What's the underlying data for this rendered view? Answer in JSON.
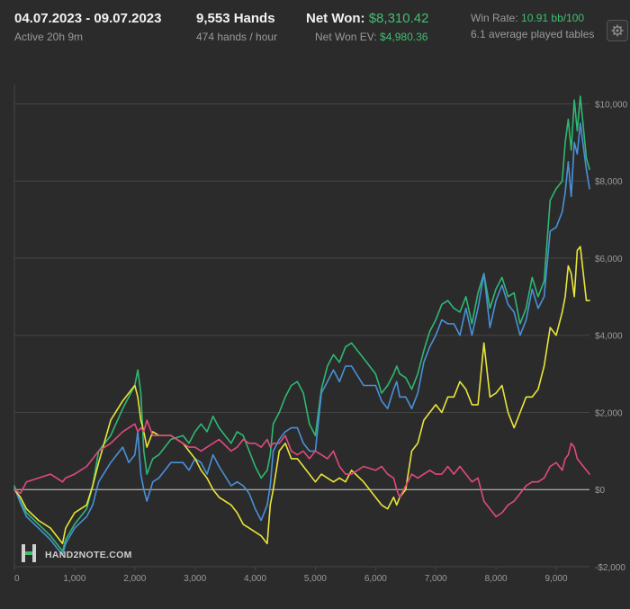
{
  "header": {
    "date_range": "04.07.2023 - 09.07.2023",
    "active": "Active 20h 9m",
    "hands": "9,553 Hands",
    "hands_per_hour": "474 hands / hour",
    "net_won_label": "Net Won:",
    "net_won_value": "$8,310.42",
    "net_won_ev_label": "Net Won  EV:",
    "net_won_ev_value": "$4,980.36",
    "win_rate_label": "Win Rate:",
    "win_rate_value": "10.91 bb/100",
    "tables": "6.1 average played tables",
    "settings_icon": "gear-icon"
  },
  "watermark": {
    "text": "HAND2NOTE.COM",
    "logo_icon": "h2n-logo-icon"
  },
  "colors": {
    "background": "#2b2b2b",
    "grid": "#444444",
    "zero_line": "#cfcfcf",
    "accent_green": "#3fbf6f"
  },
  "chart_data": {
    "type": "line",
    "xlim": [
      0,
      9553
    ],
    "ylim": [
      -2000,
      10500
    ],
    "x_ticks": [
      0,
      1000,
      2000,
      3000,
      4000,
      5000,
      6000,
      7000,
      8000,
      9000
    ],
    "x_tick_labels": [
      "0",
      "1,000",
      "2,000",
      "3,000",
      "4,000",
      "5,000",
      "6,000",
      "7,000",
      "8,000",
      "9,000"
    ],
    "y_ticks": [
      -2000,
      0,
      2000,
      4000,
      6000,
      8000,
      10000
    ],
    "y_tick_labels": [
      "-$2,000",
      "$0",
      "$2,000",
      "$4,000",
      "$6,000",
      "$8,000",
      "$10,000"
    ],
    "grid": true,
    "series": [
      {
        "color": "#2eb872",
        "x": [
          0,
          100,
          200,
          400,
          600,
          800,
          850,
          1000,
          1200,
          1300,
          1400,
          1600,
          1800,
          1900,
          2000,
          2050,
          2100,
          2150,
          2200,
          2300,
          2400,
          2600,
          2800,
          2900,
          3000,
          3100,
          3200,
          3300,
          3400,
          3600,
          3700,
          3800,
          3900,
          4000,
          4100,
          4200,
          4250,
          4300,
          4400,
          4500,
          4600,
          4700,
          4800,
          4900,
          5000,
          5100,
          5200,
          5300,
          5400,
          5500,
          5600,
          5800,
          6000,
          6100,
          6200,
          6300,
          6350,
          6400,
          6500,
          6600,
          6700,
          6800,
          6900,
          7000,
          7100,
          7200,
          7300,
          7400,
          7500,
          7600,
          7700,
          7800,
          7900,
          8000,
          8100,
          8200,
          8300,
          8400,
          8500,
          8600,
          8700,
          8800,
          8900,
          9000,
          9100,
          9150,
          9200,
          9250,
          9300,
          9350,
          9400,
          9500,
          9553
        ],
        "y": [
          100,
          -300,
          -600,
          -900,
          -1200,
          -1600,
          -1300,
          -900,
          -500,
          100,
          1000,
          1400,
          2100,
          2400,
          2700,
          3100,
          2500,
          1000,
          400,
          800,
          900,
          1300,
          1400,
          1200,
          1500,
          1700,
          1500,
          1900,
          1600,
          1200,
          1500,
          1400,
          1000,
          600,
          300,
          500,
          900,
          1700,
          2000,
          2400,
          2700,
          2800,
          2500,
          1700,
          1400,
          2600,
          3200,
          3500,
          3300,
          3700,
          3800,
          3400,
          3000,
          2500,
          2700,
          3000,
          3200,
          3000,
          2900,
          2600,
          3000,
          3600,
          4100,
          4400,
          4800,
          4900,
          4700,
          4600,
          5000,
          4300,
          5100,
          5600,
          4700,
          5200,
          5500,
          5000,
          5100,
          4300,
          4700,
          5500,
          5000,
          5400,
          7500,
          7800,
          8000,
          9000,
          9600,
          8800,
          10100,
          9300,
          10200,
          8600,
          8300
        ]
      },
      {
        "color": "#4a90d9",
        "x": [
          0,
          100,
          200,
          400,
          600,
          800,
          850,
          1000,
          1200,
          1300,
          1400,
          1600,
          1800,
          1900,
          2000,
          2050,
          2100,
          2150,
          2200,
          2300,
          2400,
          2600,
          2800,
          2900,
          3000,
          3100,
          3200,
          3300,
          3400,
          3600,
          3700,
          3800,
          3900,
          4000,
          4100,
          4200,
          4250,
          4300,
          4400,
          4500,
          4600,
          4700,
          4800,
          4900,
          5000,
          5100,
          5200,
          5300,
          5400,
          5500,
          5600,
          5800,
          6000,
          6100,
          6200,
          6300,
          6350,
          6400,
          6500,
          6600,
          6700,
          6800,
          6900,
          7000,
          7100,
          7200,
          7300,
          7400,
          7500,
          7600,
          7700,
          7800,
          7900,
          8000,
          8100,
          8200,
          8300,
          8400,
          8500,
          8600,
          8700,
          8800,
          8900,
          9000,
          9100,
          9150,
          9200,
          9250,
          9300,
          9350,
          9400,
          9500,
          9553
        ],
        "y": [
          50,
          -350,
          -700,
          -1000,
          -1300,
          -1700,
          -1400,
          -1000,
          -700,
          -400,
          200,
          700,
          1100,
          700,
          900,
          1500,
          400,
          0,
          -300,
          200,
          300,
          700,
          700,
          500,
          800,
          700,
          400,
          900,
          600,
          100,
          200,
          100,
          -100,
          -500,
          -800,
          -400,
          100,
          1000,
          1300,
          1500,
          1600,
          1600,
          1200,
          1000,
          1000,
          2500,
          2800,
          3100,
          2800,
          3200,
          3200,
          2700,
          2700,
          2300,
          2100,
          2600,
          2800,
          2400,
          2400,
          2100,
          2500,
          3300,
          3700,
          4000,
          4400,
          4300,
          4300,
          4000,
          4700,
          4000,
          4700,
          5600,
          4200,
          4900,
          5300,
          4800,
          4600,
          4000,
          4400,
          5200,
          4700,
          5000,
          6700,
          6800,
          7200,
          7700,
          8500,
          7600,
          9000,
          8700,
          9500,
          8300,
          7800
        ]
      },
      {
        "color": "#e8e53a",
        "x": [
          0,
          100,
          200,
          400,
          600,
          800,
          850,
          1000,
          1200,
          1300,
          1400,
          1600,
          1800,
          1900,
          2000,
          2050,
          2100,
          2150,
          2200,
          2300,
          2400,
          2600,
          2800,
          2900,
          3000,
          3100,
          3200,
          3300,
          3400,
          3600,
          3700,
          3800,
          3900,
          4000,
          4100,
          4200,
          4250,
          4300,
          4400,
          4500,
          4600,
          4700,
          4800,
          4900,
          5000,
          5100,
          5200,
          5300,
          5400,
          5500,
          5600,
          5800,
          6000,
          6100,
          6200,
          6300,
          6350,
          6400,
          6500,
          6600,
          6700,
          6800,
          6900,
          7000,
          7100,
          7200,
          7300,
          7400,
          7500,
          7600,
          7700,
          7800,
          7900,
          8000,
          8100,
          8200,
          8300,
          8400,
          8500,
          8600,
          8700,
          8800,
          8900,
          9000,
          9100,
          9150,
          9200,
          9250,
          9300,
          9350,
          9400,
          9500,
          9553
        ],
        "y": [
          0,
          -200,
          -500,
          -800,
          -1000,
          -1400,
          -1000,
          -600,
          -400,
          100,
          700,
          1800,
          2300,
          2500,
          2700,
          2400,
          1800,
          1500,
          1100,
          1500,
          1400,
          1400,
          1200,
          1000,
          800,
          500,
          300,
          0,
          -200,
          -400,
          -600,
          -900,
          -1000,
          -1100,
          -1200,
          -1400,
          -400,
          0,
          1000,
          1200,
          800,
          800,
          600,
          400,
          200,
          400,
          300,
          200,
          300,
          200,
          500,
          200,
          -200,
          -400,
          -500,
          -200,
          -400,
          -200,
          0,
          1000,
          1200,
          1800,
          2000,
          2200,
          2000,
          2400,
          2400,
          2800,
          2600,
          2200,
          2200,
          3800,
          2400,
          2500,
          2700,
          2000,
          1600,
          2000,
          2400,
          2400,
          2600,
          3200,
          4200,
          4000,
          4600,
          5000,
          5800,
          5600,
          5000,
          6200,
          6300,
          4900,
          4900
        ]
      },
      {
        "color": "#e04a7e",
        "x": [
          0,
          100,
          200,
          400,
          600,
          800,
          850,
          1000,
          1200,
          1300,
          1400,
          1600,
          1800,
          1900,
          2000,
          2050,
          2100,
          2150,
          2200,
          2300,
          2400,
          2600,
          2800,
          2900,
          3000,
          3100,
          3200,
          3300,
          3400,
          3600,
          3700,
          3800,
          3900,
          4000,
          4100,
          4200,
          4250,
          4300,
          4400,
          4500,
          4600,
          4700,
          4800,
          4900,
          5000,
          5100,
          5200,
          5300,
          5400,
          5500,
          5600,
          5800,
          6000,
          6100,
          6200,
          6300,
          6350,
          6400,
          6500,
          6600,
          6700,
          6800,
          6900,
          7000,
          7100,
          7200,
          7300,
          7400,
          7500,
          7600,
          7700,
          7800,
          7900,
          8000,
          8100,
          8200,
          8300,
          8400,
          8500,
          8600,
          8700,
          8800,
          8900,
          9000,
          9100,
          9150,
          9200,
          9250,
          9300,
          9350,
          9400,
          9500,
          9553
        ],
        "y": [
          0,
          -100,
          200,
          300,
          400,
          200,
          300,
          400,
          600,
          800,
          1000,
          1200,
          1500,
          1600,
          1700,
          1500,
          1600,
          1500,
          1800,
          1400,
          1400,
          1400,
          1200,
          1100,
          1100,
          1000,
          1100,
          1200,
          1300,
          1000,
          1100,
          1300,
          1200,
          1200,
          1100,
          1300,
          1100,
          1200,
          1200,
          1400,
          1000,
          900,
          1000,
          800,
          1000,
          900,
          800,
          1000,
          600,
          400,
          400,
          600,
          500,
          600,
          400,
          300,
          0,
          -200,
          100,
          400,
          300,
          400,
          500,
          400,
          400,
          600,
          400,
          600,
          400,
          200,
          300,
          -300,
          -500,
          -700,
          -600,
          -400,
          -300,
          -100,
          100,
          200,
          200,
          300,
          600,
          700,
          500,
          800,
          900,
          1200,
          1100,
          800,
          700,
          500,
          400
        ]
      }
    ]
  }
}
